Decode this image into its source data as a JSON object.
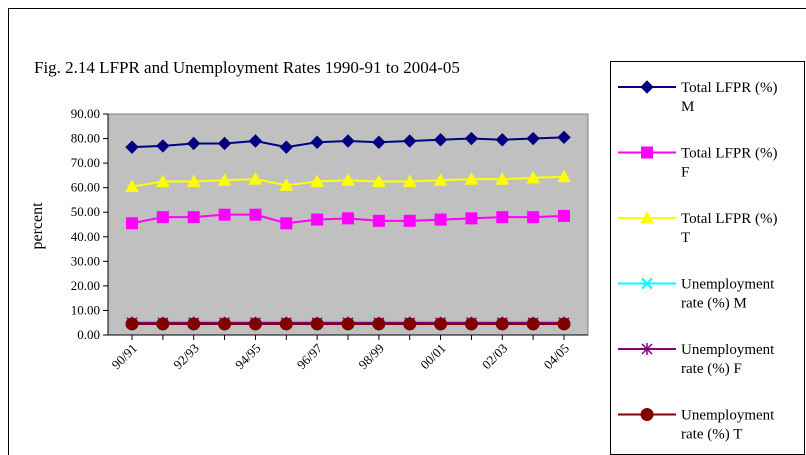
{
  "chart_data": {
    "type": "line",
    "title": "Fig. 2.14 LFPR and Unemployment Rates 1990-91 to 2004-05",
    "xlabel": "",
    "ylabel": "percent",
    "ylim": [
      0,
      90
    ],
    "y_ticks": [
      "0.00",
      "10.00",
      "20.00",
      "30.00",
      "40.00",
      "50.00",
      "60.00",
      "70.00",
      "80.00",
      "90.00"
    ],
    "categories": [
      "90/91",
      "91/92",
      "92/93",
      "93/94",
      "94/95",
      "95/96",
      "96/97",
      "97/98",
      "98/99",
      "99/00",
      "00/01",
      "01/02",
      "02/03",
      "03/04",
      "04/05"
    ],
    "x_tick_labels": [
      "90/91",
      "",
      "92/93",
      "",
      "94/95",
      "",
      "96/97",
      "",
      "98/99",
      "",
      "00/01",
      "",
      "02/03",
      "",
      "04/05"
    ],
    "grid": false,
    "plot_background": "#c0c0c0",
    "legend_position": "right",
    "series": [
      {
        "name_lines": [
          "Total LFPR (%)",
          "M"
        ],
        "color": "#000080",
        "marker": "diamond",
        "values": [
          76.5,
          77.0,
          78.0,
          78.0,
          79.0,
          76.5,
          78.5,
          79.0,
          78.5,
          79.0,
          79.5,
          80.0,
          79.5,
          80.0,
          80.5
        ]
      },
      {
        "name_lines": [
          "Total LFPR (%)",
          "F"
        ],
        "color": "#ff00ff",
        "marker": "square",
        "values": [
          45.5,
          48.0,
          48.0,
          49.0,
          49.0,
          45.5,
          47.0,
          47.5,
          46.5,
          46.5,
          47.0,
          47.5,
          48.0,
          48.0,
          48.5
        ]
      },
      {
        "name_lines": [
          "Total LFPR (%)",
          "T"
        ],
        "color": "#ffff00",
        "marker": "triangle",
        "values": [
          60.5,
          62.5,
          62.5,
          63.0,
          63.5,
          61.0,
          62.5,
          63.0,
          62.5,
          62.5,
          63.0,
          63.5,
          63.5,
          64.0,
          64.5
        ]
      },
      {
        "name_lines": [
          "Unemployment",
          "rate (%) M"
        ],
        "color": "#00ffff",
        "marker": "x",
        "values": [
          5.0,
          5.0,
          5.0,
          5.0,
          5.0,
          5.0,
          5.0,
          5.0,
          5.0,
          5.0,
          5.0,
          5.0,
          5.0,
          5.0,
          5.0
        ]
      },
      {
        "name_lines": [
          "Unemployment",
          "rate (%) F"
        ],
        "color": "#800080",
        "marker": "star",
        "values": [
          5.0,
          5.0,
          5.0,
          5.0,
          5.0,
          5.0,
          5.0,
          5.0,
          5.0,
          5.0,
          5.0,
          5.0,
          5.0,
          5.0,
          5.0
        ]
      },
      {
        "name_lines": [
          "Unemployment",
          "rate (%) T"
        ],
        "color": "#800000",
        "marker": "circle",
        "values": [
          4.5,
          4.5,
          4.5,
          4.5,
          4.5,
          4.5,
          4.5,
          4.5,
          4.5,
          4.5,
          4.5,
          4.5,
          4.5,
          4.5,
          4.5
        ]
      }
    ]
  }
}
